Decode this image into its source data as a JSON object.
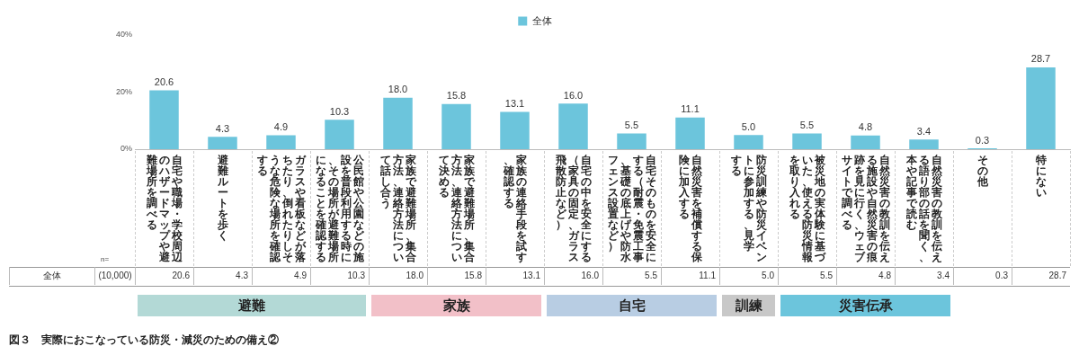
{
  "chart_data": {
    "type": "bar",
    "title": "図３　実際におこなっている防災・減災のための備え②",
    "categories": [
      "自宅や職場・学校周辺のハザードマップや避難場所を調べる",
      "避難ルートを歩く",
      "ガラスや看板などが落ちたり、倒れたりしそうな危険な場所を確認する",
      "公民館や公園などの施設を普段利用する時に、その場所が避難場所になることを確認する",
      "家族で避難場所、集合方法、連絡方法について話し合う",
      "家族で避難場所、集合方法、連絡方法について決める",
      "家族の連絡手段を試す、確認する",
      "自宅の中を安全にする（家具の固定、ガラス飛散防止など）",
      "自宅そのものを安全にする（耐震・免震工事、基礎の底上げや防水フェンス設置など）",
      "自然災害を補償する保険に加入する",
      "防災訓練や防災イベントに参加する、見学する",
      "被災地の実体験に基づいた、使える防災情報を取り入れる",
      "自然災害の教訓を伝える施設や自然災害の痕跡を見に行く、ウェブサイトで調べる",
      "自然災害の教訓を伝える語り部の話を聞く、本や記事で読む",
      "その他",
      "特にない"
    ],
    "series": [
      {
        "name": "全体",
        "color": "#6cc5dc",
        "values": [
          20.6,
          4.3,
          4.9,
          10.3,
          18.0,
          15.8,
          13.1,
          16.0,
          5.5,
          11.1,
          5.0,
          5.5,
          4.8,
          3.4,
          0.3,
          28.7
        ],
        "value_labels": [
          "20.6",
          "4.3",
          "4.9",
          "10.3",
          "18.0",
          "15.8",
          "13.1",
          "16.0",
          "5.5",
          "11.1",
          "5.0",
          "5.5",
          "4.8",
          "3.4",
          "0.3",
          "28.7"
        ]
      }
    ],
    "ylim": [
      0,
      40
    ],
    "yticks": [
      {
        "value": 0,
        "label": "0%"
      },
      {
        "value": 20,
        "label": "20%"
      },
      {
        "value": 40,
        "label": "40%"
      }
    ],
    "legend": "top",
    "annotations": [
      "n=",
      "(10,000)",
      "避難",
      "家族",
      "自宅",
      "訓練",
      "災害伝承"
    ]
  }
}
